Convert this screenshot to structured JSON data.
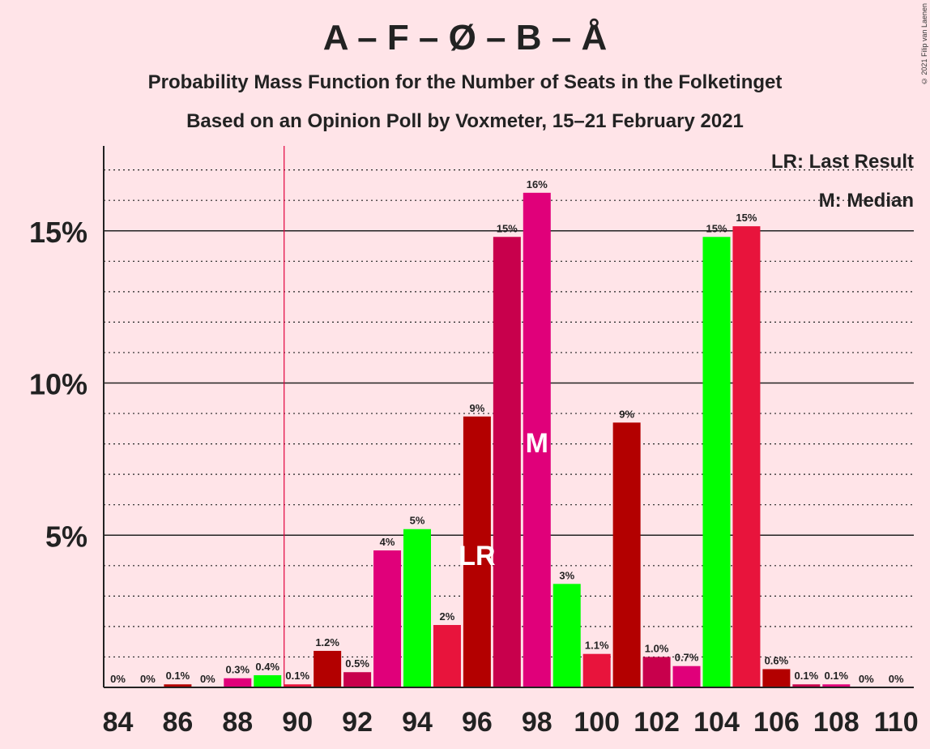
{
  "title": "A – F – Ø – B – Å",
  "subtitle1": "Probability Mass Function for the Number of Seats in the Folketinget",
  "subtitle2": "Based on an Opinion Poll by Voxmeter, 15–21 February 2021",
  "copyright": "© 2021 Filip van Laenen",
  "legend": {
    "last_result": "LR: Last Result",
    "median": "M: Median"
  },
  "chart_data": {
    "type": "bar",
    "x": [
      84,
      85,
      86,
      87,
      88,
      89,
      90,
      91,
      92,
      93,
      94,
      95,
      96,
      97,
      98,
      99,
      100,
      101,
      102,
      103,
      104,
      105,
      106,
      107,
      108,
      109,
      110
    ],
    "values": [
      0,
      0,
      0.1,
      0,
      0.3,
      0.4,
      0.1,
      1.2,
      0.5,
      4.5,
      5.2,
      2.05,
      8.9,
      14.8,
      16.25,
      3.4,
      1.1,
      8.7,
      1.0,
      0.7,
      14.8,
      15.15,
      0.6,
      0.1,
      0.1,
      0,
      0
    ],
    "labels": [
      "0%",
      "0%",
      "0.1%",
      "0%",
      "0.3%",
      "0.4%",
      "0.1%",
      "1.2%",
      "0.5%",
      "4%",
      "5%",
      "2%",
      "9%",
      "15%",
      "16%",
      "3%",
      "1.1%",
      "9%",
      "1.0%",
      "0.7%",
      "15%",
      "15%",
      "0.6%",
      "0.1%",
      "0.1%",
      "0%",
      "0%"
    ],
    "colors": [
      "#e0007a",
      "#00ff00",
      "#b30000",
      "#e0007a",
      "#e0007a",
      "#00ff00",
      "#e8143c",
      "#b30000",
      "#c8004c",
      "#e0007a",
      "#00ff00",
      "#e8143c",
      "#b30000",
      "#c8004c",
      "#e0007a",
      "#00ff00",
      "#e8143c",
      "#b30000",
      "#c8004c",
      "#e0007a",
      "#00ff00",
      "#e8143c",
      "#b30000",
      "#c8004c",
      "#e0007a",
      "#00ff00",
      "#e8143c"
    ],
    "xticks": [
      84,
      86,
      88,
      90,
      92,
      94,
      96,
      98,
      100,
      102,
      104,
      106,
      108,
      110
    ],
    "yticks": [
      {
        "value": 5,
        "label": "5%"
      },
      {
        "value": 10,
        "label": "10%"
      },
      {
        "value": 15,
        "label": "15%"
      }
    ],
    "ylim": [
      0,
      17.75
    ],
    "minor_grid_step": 1,
    "last_result": {
      "seat": 96,
      "label": "LR"
    },
    "median": {
      "seat": 98,
      "label": "M"
    },
    "majority_line_seat": 90
  }
}
